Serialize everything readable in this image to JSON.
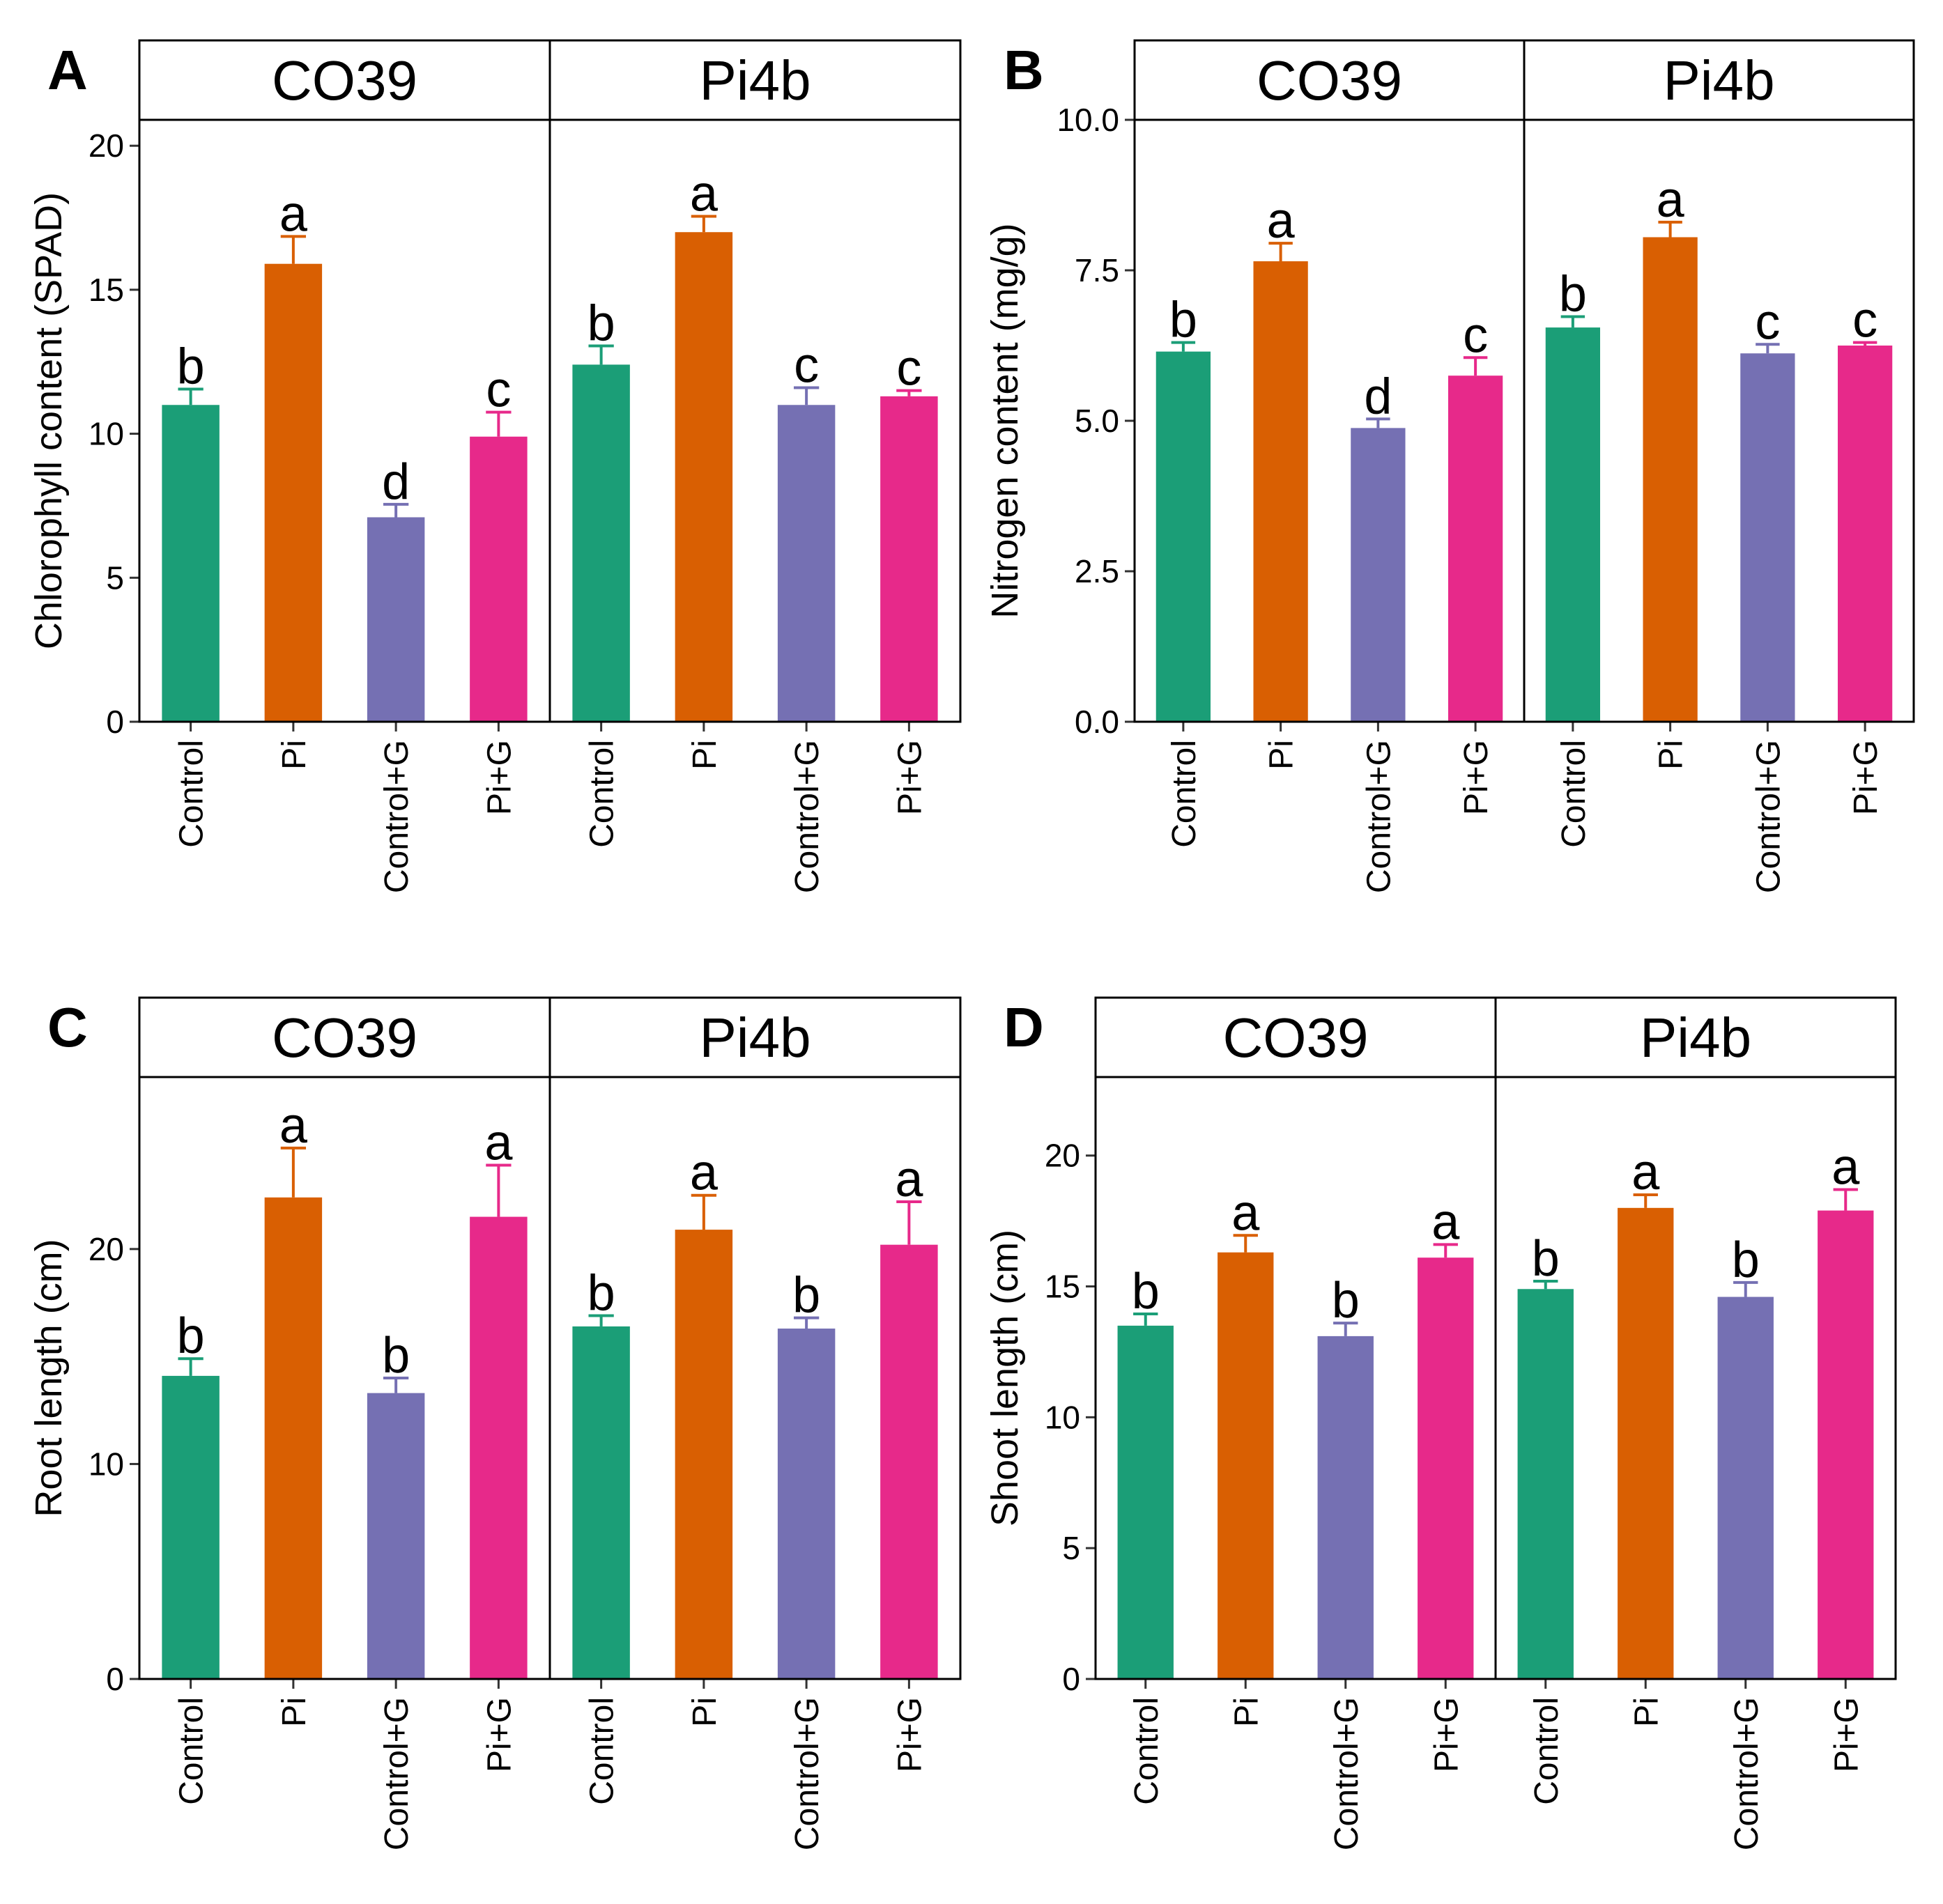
{
  "colors": {
    "Control": "#1b9e77",
    "Pi": "#d95f02",
    "Control+G": "#7570b3",
    "Pi+G": "#e7298a"
  },
  "chart_data": [
    {
      "panel": "A",
      "type": "bar",
      "ylabel": "Chlorophyll content (SPAD)",
      "ylim": [
        0,
        20.9
      ],
      "yticks": [
        "0",
        "5",
        "10",
        "15",
        "20"
      ],
      "yticks_values": [
        0,
        5,
        10,
        15,
        20
      ],
      "categories": [
        "Control",
        "Pi",
        "Control+G",
        "Pi+G"
      ],
      "facets": [
        {
          "strip": "CO39",
          "values": [
            11.0,
            15.9,
            7.1,
            9.9
          ],
          "errors": [
            0.55,
            0.95,
            0.45,
            0.85
          ],
          "letters": [
            "b",
            "a",
            "d",
            "c"
          ]
        },
        {
          "strip": "Pi4b",
          "values": [
            12.4,
            17.0,
            11.0,
            11.3
          ],
          "errors": [
            0.65,
            0.55,
            0.6,
            0.2
          ],
          "letters": [
            "b",
            "a",
            "c",
            "c"
          ]
        }
      ]
    },
    {
      "panel": "B",
      "type": "bar",
      "ylabel": "Nitrogen content (mg/g)",
      "ylim": [
        0,
        10.0
      ],
      "yticks": [
        "0.0",
        "2.5",
        "5.0",
        "7.5",
        "10.0"
      ],
      "yticks_values": [
        0,
        2.5,
        5.0,
        7.5,
        10.0
      ],
      "categories": [
        "Control",
        "Pi",
        "Control+G",
        "Pi+G"
      ],
      "facets": [
        {
          "strip": "CO39",
          "values": [
            6.15,
            7.65,
            4.88,
            5.75
          ],
          "errors": [
            0.15,
            0.3,
            0.15,
            0.3
          ],
          "letters": [
            "b",
            "a",
            "d",
            "c"
          ]
        },
        {
          "strip": "Pi4b",
          "values": [
            6.55,
            8.05,
            6.12,
            6.25
          ],
          "errors": [
            0.18,
            0.25,
            0.15,
            0.05
          ],
          "letters": [
            "b",
            "a",
            "c",
            "c"
          ]
        }
      ]
    },
    {
      "panel": "C",
      "type": "bar",
      "ylabel": "Root length (cm)",
      "ylim": [
        0,
        28
      ],
      "yticks": [
        "0",
        "10",
        "20"
      ],
      "yticks_values": [
        0,
        10,
        20
      ],
      "categories": [
        "Control",
        "Pi",
        "Control+G",
        "Pi+G"
      ],
      "facets": [
        {
          "strip": "CO39",
          "values": [
            14.1,
            22.4,
            13.3,
            21.5
          ],
          "errors": [
            0.8,
            2.3,
            0.7,
            2.4
          ],
          "letters": [
            "b",
            "a",
            "b",
            "a"
          ]
        },
        {
          "strip": "Pi4b",
          "values": [
            16.4,
            20.9,
            16.3,
            20.2
          ],
          "errors": [
            0.5,
            1.6,
            0.5,
            2.0
          ],
          "letters": [
            "b",
            "a",
            "b",
            "a"
          ]
        }
      ]
    },
    {
      "panel": "D",
      "type": "bar",
      "ylabel": "Shoot length (cm)",
      "ylim": [
        0,
        23
      ],
      "yticks": [
        "0",
        "5",
        "10",
        "15",
        "20"
      ],
      "yticks_values": [
        0,
        5,
        10,
        15,
        20
      ],
      "categories": [
        "Control",
        "Pi",
        "Control+G",
        "Pi+G"
      ],
      "facets": [
        {
          "strip": "CO39",
          "values": [
            13.5,
            16.3,
            13.1,
            16.1
          ],
          "errors": [
            0.45,
            0.65,
            0.5,
            0.5
          ],
          "letters": [
            "b",
            "a",
            "b",
            "a"
          ]
        },
        {
          "strip": "Pi4b",
          "values": [
            14.9,
            18.0,
            14.6,
            17.9
          ],
          "errors": [
            0.3,
            0.5,
            0.55,
            0.8
          ],
          "letters": [
            "b",
            "a",
            "b",
            "a"
          ]
        }
      ]
    }
  ]
}
